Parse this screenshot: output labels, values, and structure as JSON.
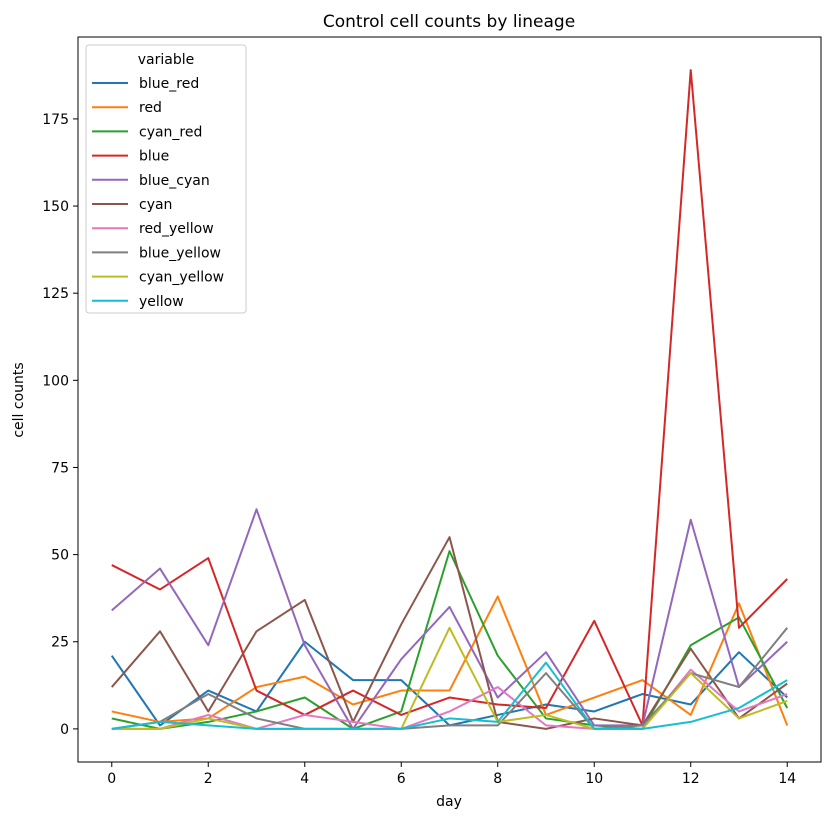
{
  "chart_data": {
    "type": "line",
    "title": "Control cell counts by lineage",
    "xlabel": "day",
    "ylabel": "cell counts",
    "xlim": [
      -0.7,
      14.7
    ],
    "ylim": [
      -9.5,
      198.5
    ],
    "xticks": [
      0,
      2,
      4,
      6,
      8,
      10,
      12,
      14
    ],
    "yticks": [
      0,
      25,
      50,
      75,
      100,
      125,
      150,
      175
    ],
    "grid": false,
    "legend": {
      "title": "variable",
      "placement": "top-left"
    },
    "x": [
      0,
      1,
      2,
      3,
      4,
      5,
      6,
      7,
      8,
      9,
      10,
      11,
      12,
      13,
      14
    ],
    "series": [
      {
        "name": "blue_red",
        "color": "#1f77b4",
        "values": [
          21,
          1,
          11,
          5,
          25,
          14,
          14,
          1,
          4,
          7,
          5,
          10,
          7,
          22,
          9
        ]
      },
      {
        "name": "red",
        "color": "#ff7f0e",
        "values": [
          5,
          2,
          3,
          12,
          15,
          7,
          11,
          11,
          38,
          4,
          9,
          14,
          4,
          36,
          1
        ]
      },
      {
        "name": "cyan_red",
        "color": "#2ca02c",
        "values": [
          3,
          0,
          2,
          5,
          9,
          0,
          5,
          51,
          21,
          3,
          1,
          0,
          24,
          32,
          6
        ]
      },
      {
        "name": "blue",
        "color": "#d62728",
        "values": [
          47,
          40,
          49,
          11,
          4,
          11,
          4,
          9,
          7,
          6,
          31,
          1,
          189,
          29,
          43
        ]
      },
      {
        "name": "blue_cyan",
        "color": "#9467bd",
        "values": [
          34,
          46,
          24,
          63,
          24,
          0,
          20,
          35,
          9,
          22,
          1,
          1,
          60,
          12,
          25
        ]
      },
      {
        "name": "cyan",
        "color": "#8c564b",
        "values": [
          12,
          28,
          5,
          28,
          37,
          2,
          30,
          55,
          2,
          0,
          3,
          1,
          23,
          3,
          13
        ]
      },
      {
        "name": "red_yellow",
        "color": "#e377c2",
        "values": [
          0,
          0,
          4,
          0,
          4,
          2,
          0,
          5,
          12,
          1,
          0,
          0,
          17,
          5,
          10
        ]
      },
      {
        "name": "blue_yellow",
        "color": "#7f7f7f",
        "values": [
          0,
          2,
          10,
          3,
          0,
          0,
          0,
          1,
          1,
          16,
          0,
          1,
          16,
          12,
          29
        ]
      },
      {
        "name": "cyan_yellow",
        "color": "#bcbd22",
        "values": [
          0,
          0,
          3,
          0,
          0,
          0,
          0,
          29,
          2,
          4,
          0,
          0,
          16,
          3,
          8
        ]
      },
      {
        "name": "yellow",
        "color": "#17becf",
        "values": [
          0,
          2,
          1,
          0,
          0,
          0,
          0,
          3,
          2,
          19,
          0,
          0,
          2,
          6,
          14
        ]
      }
    ]
  }
}
